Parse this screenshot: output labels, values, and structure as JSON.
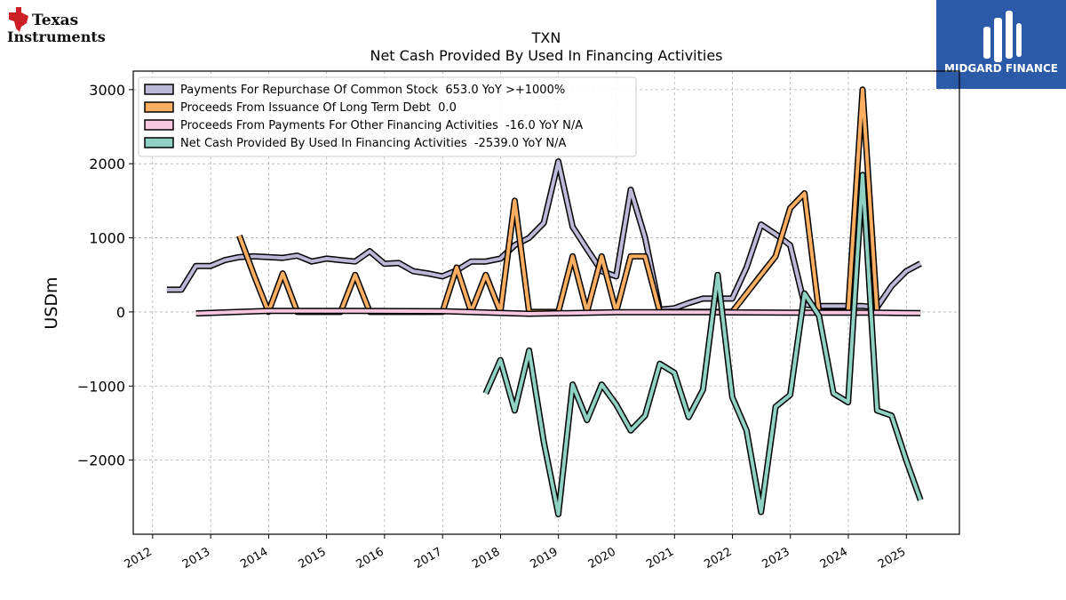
{
  "company_logo": {
    "line1": "Texas",
    "line2": "Instruments"
  },
  "brand_logo": {
    "name": "MIDGARD FINANCE",
    "background": "#2b5aa8"
  },
  "chart_data": {
    "type": "line",
    "title": "TXN",
    "subtitle": "Net Cash Provided By Used In Financing Activities",
    "ylabel": "USDm",
    "xlabel": "",
    "xlim": [
      "2011-09-01",
      "2025-12-01"
    ],
    "ylim": [
      -3000,
      3250
    ],
    "x_ticks": [
      "2012",
      "2013",
      "2014",
      "2015",
      "2016",
      "2017",
      "2018",
      "2019",
      "2020",
      "2021",
      "2022",
      "2023",
      "2024",
      "2025"
    ],
    "y_ticks": [
      -2000,
      -1000,
      0,
      1000,
      2000,
      3000
    ],
    "y_tick_labels": [
      "−2000",
      "−1000",
      "0",
      "1000",
      "2000",
      "3000"
    ],
    "grid": true,
    "legend_position": "top-left",
    "series": [
      {
        "name": "Payments For Repurchase Of Common Stock  653.0 YoY >+1000%",
        "color": "#bcb9d8",
        "x": [
          "2012-03-31",
          "2012-06-30",
          "2012-09-30",
          "2012-12-31",
          "2013-03-31",
          "2013-06-30",
          "2013-09-30",
          "2013-12-31",
          "2014-03-31",
          "2014-06-30",
          "2014-09-30",
          "2014-12-31",
          "2015-03-31",
          "2015-06-30",
          "2015-09-30",
          "2015-12-31",
          "2016-03-31",
          "2016-06-30",
          "2016-09-30",
          "2016-12-31",
          "2017-03-31",
          "2017-06-30",
          "2017-09-30",
          "2017-12-31",
          "2018-03-31",
          "2018-06-30",
          "2018-09-30",
          "2018-12-31",
          "2019-03-31",
          "2019-06-30",
          "2019-09-30",
          "2019-12-31",
          "2020-03-31",
          "2020-06-30",
          "2020-09-30",
          "2020-12-31",
          "2021-03-31",
          "2021-06-30",
          "2021-09-30",
          "2021-12-31",
          "2022-03-31",
          "2022-06-30",
          "2022-09-30",
          "2022-12-31",
          "2023-03-31",
          "2023-06-30",
          "2023-09-30",
          "2023-12-31",
          "2024-03-31",
          "2024-06-30",
          "2024-09-30",
          "2024-12-31",
          "2025-03-31"
        ],
        "y": [
          300,
          300,
          620,
          620,
          700,
          740,
          750,
          740,
          730,
          760,
          680,
          720,
          700,
          680,
          820,
          650,
          660,
          550,
          520,
          480,
          560,
          680,
          680,
          720,
          900,
          1000,
          1200,
          2030,
          1150,
          850,
          550,
          480,
          1650,
          1000,
          30,
          50,
          120,
          180,
          180,
          180,
          600,
          1180,
          1050,
          900,
          100,
          80,
          80,
          80,
          80,
          60,
          350,
          550,
          653
        ]
      },
      {
        "name": "Proceeds From Issuance Of Long Term Debt  0.0",
        "color": "#fdae61",
        "x": [
          "2013-06-30",
          "2013-09-30",
          "2013-12-31",
          "2014-03-31",
          "2014-06-30",
          "2014-09-30",
          "2014-12-31",
          "2015-03-31",
          "2015-06-30",
          "2015-09-30",
          "2015-12-31",
          "2016-03-31",
          "2016-06-30",
          "2016-09-30",
          "2016-12-31",
          "2017-03-31",
          "2017-06-30",
          "2017-09-30",
          "2017-12-31",
          "2018-03-31",
          "2018-06-30",
          "2018-09-30",
          "2018-12-31",
          "2019-03-31",
          "2019-06-30",
          "2019-09-30",
          "2019-12-31",
          "2020-03-31",
          "2020-06-30",
          "2020-09-30",
          "2020-12-31",
          "2021-03-31",
          "2021-06-30",
          "2021-09-30",
          "2021-12-31",
          "2022-03-31",
          "2022-06-30",
          "2022-09-30",
          "2022-12-31",
          "2023-03-31",
          "2023-06-30",
          "2023-09-30",
          "2023-12-31",
          "2024-03-31",
          "2024-06-30"
        ],
        "y": [
          1030,
          500,
          0,
          520,
          0,
          0,
          0,
          0,
          500,
          0,
          0,
          0,
          0,
          0,
          0,
          600,
          0,
          500,
          0,
          1500,
          0,
          0,
          0,
          750,
          0,
          750,
          0,
          750,
          750,
          0,
          0,
          0,
          0,
          0,
          0,
          250,
          500,
          750,
          1400,
          1600,
          0,
          0,
          0,
          3000,
          0
        ]
      },
      {
        "name": "Proceeds From Payments For Other Financing Activities  -16.0 YoY N/A",
        "color": "#f9c6e0",
        "x": [
          "2012-09-30",
          "2013-12-31",
          "2015-06-30",
          "2016-12-31",
          "2018-06-30",
          "2019-12-31",
          "2021-06-30",
          "2022-12-31",
          "2024-06-30",
          "2025-03-31"
        ],
        "y": [
          -20,
          15,
          15,
          10,
          -25,
          -5,
          -5,
          -10,
          -10,
          -16
        ]
      },
      {
        "name": "Net Cash Provided By Used In Financing Activities  -2539.0 YoY N/A",
        "color": "#8fd1c2",
        "x": [
          "2017-09-30",
          "2017-12-31",
          "2018-03-31",
          "2018-06-30",
          "2018-09-30",
          "2018-12-31",
          "2019-03-31",
          "2019-06-30",
          "2019-09-30",
          "2019-12-31",
          "2020-03-31",
          "2020-06-30",
          "2020-09-30",
          "2020-12-31",
          "2021-03-31",
          "2021-06-30",
          "2021-09-30",
          "2021-12-31",
          "2022-03-31",
          "2022-06-30",
          "2022-09-30",
          "2022-12-31",
          "2023-03-31",
          "2023-06-30",
          "2023-09-30",
          "2023-12-31",
          "2024-03-31",
          "2024-06-30",
          "2024-09-30",
          "2024-12-31",
          "2025-03-31"
        ],
        "y": [
          -1100,
          -650,
          -1330,
          -520,
          -1750,
          -2730,
          -980,
          -1460,
          -980,
          -1250,
          -1600,
          -1400,
          -700,
          -820,
          -1420,
          -1050,
          500,
          -1150,
          -1600,
          -2700,
          -1280,
          -1120,
          250,
          -50,
          -1100,
          -1220,
          1850,
          -1330,
          -1400,
          -2000,
          -2539
        ]
      }
    ]
  }
}
